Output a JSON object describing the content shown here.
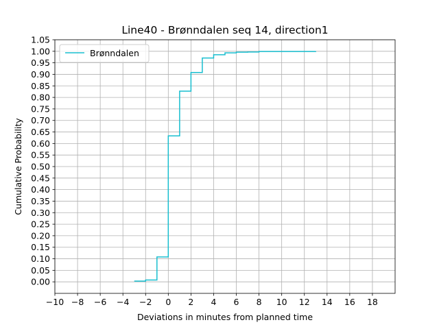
{
  "chart_data": {
    "type": "line",
    "drawstyle": "steps-post",
    "title": "Line40 - Brønndalen seq 14, direction1",
    "xlabel": "Deviations in minutes from planned time",
    "ylabel": "Cumulative Probability",
    "xlim": [
      -10,
      20
    ],
    "ylim": [
      -0.05,
      1.05
    ],
    "xticks": [
      -10,
      -8,
      -6,
      -4,
      -2,
      0,
      2,
      4,
      6,
      8,
      10,
      12,
      14,
      16,
      18
    ],
    "xtick_labels": [
      "−10",
      "−8",
      "−6",
      "−4",
      "−2",
      "0",
      "2",
      "4",
      "6",
      "8",
      "10",
      "12",
      "14",
      "16",
      "18"
    ],
    "yticks": [
      0.0,
      0.05,
      0.1,
      0.15,
      0.2,
      0.25,
      0.3,
      0.35,
      0.4,
      0.45,
      0.5,
      0.55,
      0.6,
      0.65,
      0.7,
      0.75,
      0.8,
      0.85,
      0.9,
      0.95,
      1.0,
      1.05
    ],
    "ytick_labels": [
      "0.00",
      "0.05",
      "0.10",
      "0.15",
      "0.20",
      "0.25",
      "0.30",
      "0.35",
      "0.40",
      "0.45",
      "0.50",
      "0.55",
      "0.60",
      "0.65",
      "0.70",
      "0.75",
      "0.80",
      "0.85",
      "0.90",
      "0.95",
      "1.00",
      "1.05"
    ],
    "grid": true,
    "legend": "upper-left",
    "series": [
      {
        "name": "Brønndalen",
        "color": "#17becf",
        "x": [
          -3,
          -2,
          -1,
          0,
          1,
          2,
          3,
          4,
          5,
          6,
          7,
          8,
          13
        ],
        "y": [
          0.003,
          0.008,
          0.108,
          0.633,
          0.827,
          0.908,
          0.971,
          0.985,
          0.993,
          0.996,
          0.997,
          0.999,
          1.0
        ]
      }
    ]
  }
}
